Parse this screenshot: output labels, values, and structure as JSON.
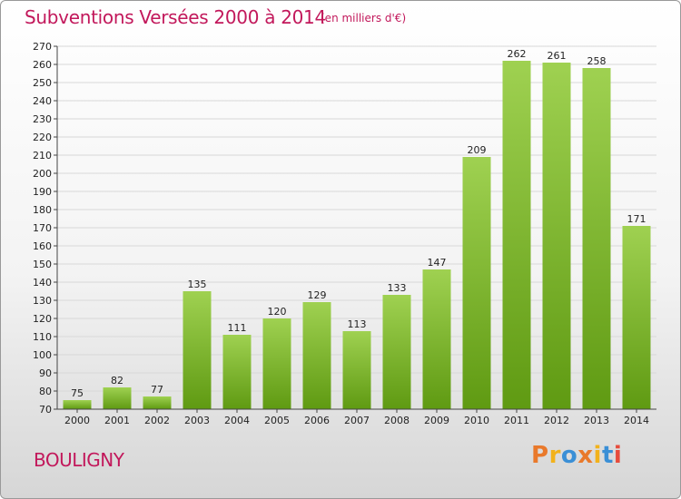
{
  "header": {
    "title": "Subventions Versées 2000 à 2014",
    "subtitle": "(en milliers d'€)"
  },
  "footer": {
    "place": "BOULIGNY",
    "logo_text": "Proxiti"
  },
  "colors": {
    "title": "#c2185b",
    "bar_light": "#9fd151",
    "bar_dark": "#5f9a12",
    "logo": [
      "#e9792b",
      "#f2b21b",
      "#3a8fd6",
      "#e9792b",
      "#f2b21b",
      "#3a8fd6",
      "#e74c3c"
    ]
  },
  "chart_data": {
    "type": "bar",
    "categories": [
      "2000",
      "2001",
      "2002",
      "2003",
      "2004",
      "2005",
      "2006",
      "2007",
      "2008",
      "2009",
      "2010",
      "2011",
      "2012",
      "2013",
      "2014"
    ],
    "values": [
      75,
      82,
      77,
      135,
      111,
      120,
      129,
      113,
      133,
      147,
      209,
      262,
      261,
      258,
      171
    ],
    "ylim": [
      70,
      270
    ],
    "ytick_step": 10,
    "grid": true
  }
}
